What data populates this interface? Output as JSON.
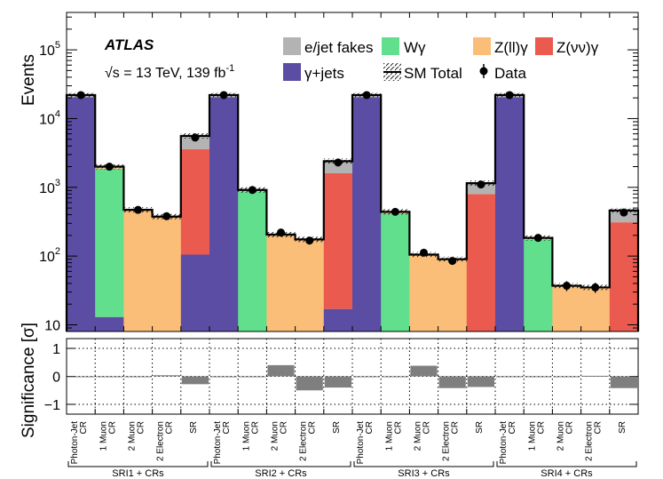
{
  "chart_data": {
    "type": "bar",
    "subtype": "stacked-log-histogram-with-significance-panel",
    "atlas_label": "ATLAS",
    "energy_label": "√s = 13 TeV, 139 fb",
    "energy_label_sup": "-1",
    "ylabel": "Events",
    "ylim": [
      8,
      350000
    ],
    "yscale": "log",
    "y_ticks": [
      {
        "value": 10,
        "base": "10",
        "exp": ""
      },
      {
        "value": 100,
        "base": "10",
        "exp": "2"
      },
      {
        "value": 1000,
        "base": "10",
        "exp": "3"
      },
      {
        "value": 10000,
        "base": "10",
        "exp": "4"
      },
      {
        "value": 100000,
        "base": "10",
        "exp": "5"
      }
    ],
    "sig_ylabel": "Significance [σ]",
    "sig_ylim": [
      -1.35,
      1.35
    ],
    "sig_ticks": [
      "1",
      "0",
      "−1"
    ],
    "legend": {
      "efakes": "e/jet fakes",
      "wg": "Wγ",
      "zllg": "Z(ll)γ",
      "znng": "Z(νν)γ",
      "gjets": "γ+jets",
      "sm_total": "SM Total",
      "data": "Data"
    },
    "colors": {
      "gjets": "#5b4da3",
      "wg": "#62df8d",
      "zllg": "#fbbe79",
      "znng": "#ea5a4e",
      "efakes": "#b3b3b3",
      "sig_bar": "#7f7f7f"
    },
    "series_order": [
      "gjets",
      "wg",
      "zllg",
      "znng",
      "efakes"
    ],
    "bins": [
      {
        "label": [
          "Photon-Jet",
          "CR"
        ],
        "gjets": 20500,
        "wg": 0,
        "zllg": 0,
        "znng": 0,
        "efakes": 1500,
        "total": 22000,
        "data": 22000,
        "sig": 0.0
      },
      {
        "label": [
          "1 Muon",
          "CR"
        ],
        "gjets": 13,
        "wg": 1850,
        "zllg": 135,
        "znng": 2,
        "efakes": 0,
        "total": 2000,
        "data": 2000,
        "sig": 0.0
      },
      {
        "label": [
          "2 Muon",
          "CR"
        ],
        "gjets": 0,
        "wg": 0,
        "zllg": 470,
        "znng": 0,
        "efakes": 0,
        "total": 470,
        "data": 470,
        "sig": -0.03
      },
      {
        "label": [
          "2 Electron",
          "CR"
        ],
        "gjets": 0,
        "wg": 0,
        "zllg": 375,
        "znng": 0,
        "efakes": 0,
        "total": 375,
        "data": 380,
        "sig": 0.04
      },
      {
        "label": [
          "SR"
        ],
        "gjets": 105,
        "wg": 0,
        "zllg": 0,
        "znng": 3495,
        "efakes": 2000,
        "total": 5600,
        "data": 5300,
        "sig": -0.28
      },
      {
        "label": [
          "Photon-Jet",
          "CR"
        ],
        "gjets": 20500,
        "wg": 0,
        "zllg": 0,
        "znng": 0,
        "efakes": 1500,
        "total": 22000,
        "data": 22000,
        "sig": 0.0
      },
      {
        "label": [
          "1 Muon",
          "CR"
        ],
        "gjets": 0,
        "wg": 860,
        "zllg": 55,
        "znng": 0,
        "efakes": 0,
        "total": 915,
        "data": 915,
        "sig": 0.0
      },
      {
        "label": [
          "2 Muon",
          "CR"
        ],
        "gjets": 0,
        "wg": 0,
        "zllg": 205,
        "znng": 0,
        "efakes": 0,
        "total": 205,
        "data": 220,
        "sig": 0.4
      },
      {
        "label": [
          "2 Electron",
          "CR"
        ],
        "gjets": 0,
        "wg": 0,
        "zllg": 175,
        "znng": 0,
        "efakes": 0,
        "total": 175,
        "data": 168,
        "sig": -0.5
      },
      {
        "label": [
          "SR"
        ],
        "gjets": 17,
        "wg": 0,
        "zllg": 0,
        "znng": 1583,
        "efakes": 800,
        "total": 2400,
        "data": 2300,
        "sig": -0.4
      },
      {
        "label": [
          "Photon-Jet",
          "CR"
        ],
        "gjets": 20500,
        "wg": 0,
        "zllg": 0,
        "znng": 0,
        "efakes": 1500,
        "total": 22000,
        "data": 22000,
        "sig": 0.0
      },
      {
        "label": [
          "1 Muon",
          "CR"
        ],
        "gjets": 0,
        "wg": 413,
        "zllg": 27,
        "znng": 0,
        "efakes": 0,
        "total": 440,
        "data": 440,
        "sig": 0.0
      },
      {
        "label": [
          "2 Muon",
          "CR"
        ],
        "gjets": 0,
        "wg": 0,
        "zllg": 105,
        "znng": 0,
        "efakes": 0,
        "total": 105,
        "data": 112,
        "sig": 0.38
      },
      {
        "label": [
          "2 Electron",
          "CR"
        ],
        "gjets": 0,
        "wg": 0,
        "zllg": 90,
        "znng": 0,
        "efakes": 0,
        "total": 90,
        "data": 85,
        "sig": -0.42
      },
      {
        "label": [
          "SR"
        ],
        "gjets": 0,
        "wg": 0,
        "zllg": 0,
        "znng": 800,
        "efakes": 350,
        "total": 1150,
        "data": 1100,
        "sig": -0.38
      },
      {
        "label": [
          "Photon-Jet",
          "CR"
        ],
        "gjets": 20500,
        "wg": 0,
        "zllg": 0,
        "znng": 0,
        "efakes": 1500,
        "total": 22000,
        "data": 22000,
        "sig": 0.0
      },
      {
        "label": [
          "1 Muon",
          "CR"
        ],
        "gjets": 0,
        "wg": 175,
        "zllg": 9,
        "znng": 0,
        "efakes": 0,
        "total": 184,
        "data": 184,
        "sig": 0.0
      },
      {
        "label": [
          "2 Muon",
          "CR"
        ],
        "gjets": 0,
        "wg": 0,
        "zllg": 37,
        "znng": 0,
        "efakes": 0,
        "total": 37,
        "data": 37,
        "sig": 0.0
      },
      {
        "label": [
          "2 Electron",
          "CR"
        ],
        "gjets": 0,
        "wg": 0,
        "zllg": 35,
        "znng": 0,
        "efakes": 0,
        "total": 35,
        "data": 35,
        "sig": 0.02
      },
      {
        "label": [
          "SR"
        ],
        "gjets": 0,
        "wg": 0,
        "zllg": 0,
        "znng": 310,
        "efakes": 150,
        "total": 460,
        "data": 430,
        "sig": -0.42
      }
    ],
    "groups": [
      "SRI1 + CRs",
      "SRI2 + CRs",
      "SRI3 + CRs",
      "SRI4 + CRs"
    ]
  }
}
